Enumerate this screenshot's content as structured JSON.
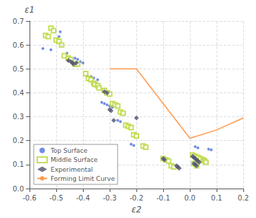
{
  "chart_data": {
    "type": "scatter",
    "xlabel": "ε2",
    "ylabel": "ε1",
    "xlim": [
      -0.6,
      0.2
    ],
    "ylim": [
      0.0,
      0.7
    ],
    "xticks": [
      -0.6,
      -0.5,
      -0.4,
      -0.3,
      -0.2,
      -0.1,
      {
        "value": 0.0,
        "label": "0.0"
      },
      0.1,
      0.2
    ],
    "yticks": [
      {
        "value": 0.0,
        "label": "0.0"
      },
      0.1,
      0.2,
      0.3,
      0.4,
      0.5,
      0.6,
      0.7
    ],
    "grid": true,
    "legend": "lower left",
    "series": [
      {
        "name": "Top Surface",
        "type": "scatter",
        "marker": "dot",
        "x": [
          -0.55,
          -0.52,
          -0.49,
          -0.485,
          -0.48,
          -0.46,
          -0.455,
          -0.44,
          -0.43,
          -0.42,
          -0.41,
          -0.4,
          -0.385,
          -0.37,
          -0.36,
          -0.345,
          -0.33,
          -0.32,
          -0.31,
          -0.3,
          -0.29,
          -0.27,
          -0.26,
          -0.22,
          -0.21,
          0.02,
          0.03,
          0.07,
          0.08
        ],
        "values": [
          0.585,
          0.58,
          0.635,
          0.655,
          0.598,
          0.565,
          0.535,
          0.535,
          0.545,
          0.54,
          0.53,
          0.525,
          0.47,
          0.468,
          0.462,
          0.455,
          0.36,
          0.355,
          0.35,
          0.345,
          0.34,
          0.285,
          0.28,
          0.185,
          0.18,
          0.175,
          0.17,
          0.165,
          0.162
        ]
      },
      {
        "name": "Middle Surface",
        "type": "scatter",
        "marker": "open_square",
        "x": [
          -0.54,
          -0.53,
          -0.52,
          -0.51,
          -0.5,
          -0.49,
          -0.48,
          -0.47,
          -0.455,
          -0.445,
          -0.43,
          -0.42,
          -0.39,
          -0.38,
          -0.37,
          -0.36,
          -0.355,
          -0.345,
          -0.34,
          -0.32,
          -0.31,
          -0.3,
          -0.29,
          -0.28,
          -0.27,
          -0.26,
          -0.25,
          -0.24,
          -0.23,
          -0.22,
          -0.21,
          -0.2,
          -0.175,
          -0.165,
          -0.1,
          -0.09,
          -0.08,
          -0.07,
          -0.06,
          0.01,
          0.02,
          0.03,
          0.04,
          0.05,
          0.055,
          0.06,
          0.015,
          0.025
        ],
        "values": [
          0.64,
          0.635,
          0.67,
          0.66,
          0.62,
          0.615,
          0.6,
          0.555,
          0.545,
          0.54,
          0.52,
          0.52,
          0.48,
          0.46,
          0.455,
          0.44,
          0.435,
          0.43,
          0.42,
          0.41,
          0.4,
          0.395,
          0.355,
          0.35,
          0.345,
          0.32,
          0.315,
          0.265,
          0.26,
          0.255,
          0.225,
          0.22,
          0.178,
          0.173,
          0.125,
          0.12,
          0.115,
          0.095,
          0.09,
          0.14,
          0.135,
          0.13,
          0.125,
          0.12,
          0.115,
          0.11,
          0.105,
          0.095
        ]
      },
      {
        "name": "Experimental",
        "type": "scatter",
        "marker": "diamond",
        "x": [
          -0.455,
          -0.445,
          -0.44,
          -0.435,
          -0.425,
          -0.32,
          -0.31,
          -0.3,
          -0.295,
          -0.285,
          -0.2,
          -0.1,
          -0.095,
          -0.05,
          -0.045,
          -0.04,
          0.01,
          0.015,
          0.02,
          0.025,
          0.03,
          0.035,
          0.015,
          0.02,
          0.025
        ],
        "values": [
          0.535,
          0.53,
          0.525,
          0.52,
          0.525,
          0.405,
          0.4,
          0.33,
          0.325,
          0.285,
          0.295,
          0.125,
          0.12,
          0.095,
          0.09,
          0.085,
          0.135,
          0.13,
          0.125,
          0.12,
          0.115,
          0.11,
          0.105,
          0.1,
          0.095
        ]
      },
      {
        "name": "Forming Limit Curve",
        "type": "line",
        "line_style": "solid",
        "x": [
          -0.3,
          -0.2,
          0.0,
          0.1,
          0.2
        ],
        "values": [
          0.5,
          0.5,
          0.21,
          0.245,
          0.295
        ]
      }
    ]
  }
}
